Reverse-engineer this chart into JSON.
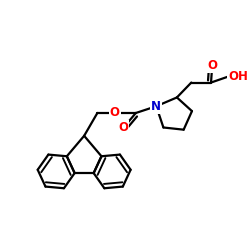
{
  "bg_color": "#ffffff",
  "bond_color": "#000000",
  "bond_lw": 1.6,
  "atom_colors": {
    "O": "#ff0000",
    "N": "#0000cc",
    "C": "#000000"
  },
  "font_size_atom": 8.5,
  "figsize": [
    2.5,
    2.5
  ],
  "dpi": 100,
  "xlim": [
    0,
    10
  ],
  "ylim": [
    0,
    10
  ]
}
